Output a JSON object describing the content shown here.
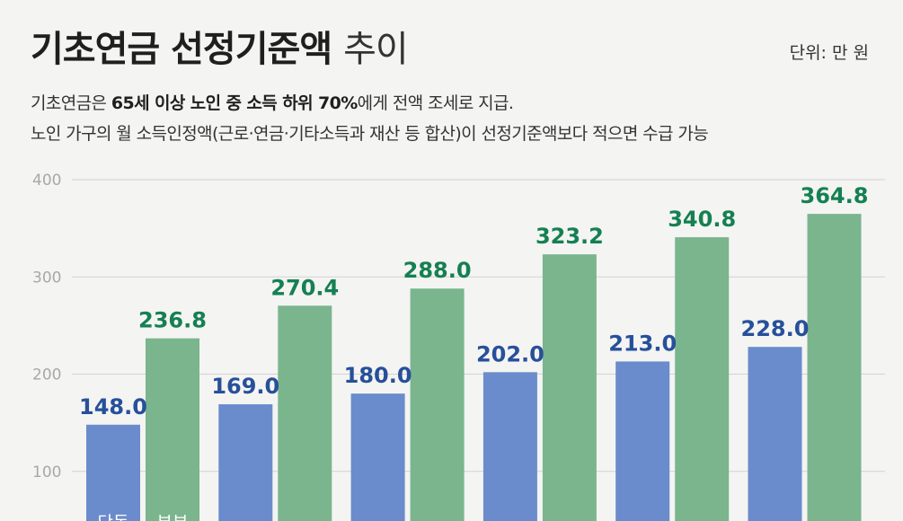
{
  "header": {
    "title_bold": "기초연금 선정기준액",
    "title_light": "추이",
    "unit": "단위: 만 원",
    "desc1_pre": "기초연금은 ",
    "desc1_bold": "65세 이상 노인 중 소득 하위 70%",
    "desc1_post": "에게 전액 조세로 지급.",
    "desc2": "노인 가구의 월 소득인정액(근로·연금·기타소득과 재산 등 합산)이 선정기준액보다 적으면 수급 가능"
  },
  "colors": {
    "single": "#6a8ccc",
    "couple": "#7ab58e",
    "single_label": "#27509a",
    "couple_label": "#158052",
    "grid": "#d2d2d2"
  },
  "chart_data": {
    "type": "bar",
    "title": "기초연금 선정기준액 추이",
    "ylabel": "",
    "xlabel": "",
    "ylim": [
      0,
      400
    ],
    "yticks": [
      100,
      200,
      300,
      400
    ],
    "grid": true,
    "legend": "inside-bottom",
    "series": [
      {
        "name": "단독",
        "values": [
          148.0,
          169.0,
          180.0,
          202.0,
          213.0,
          228.0
        ],
        "labels": [
          "148.0",
          "169.0",
          "180.0",
          "202.0",
          "213.0",
          "228.0"
        ]
      },
      {
        "name": "부부",
        "values": [
          236.8,
          270.4,
          288.0,
          323.2,
          340.8,
          364.8
        ],
        "labels": [
          "236.8",
          "270.4",
          "288.0",
          "323.2",
          "340.8",
          "364.8"
        ]
      }
    ]
  }
}
